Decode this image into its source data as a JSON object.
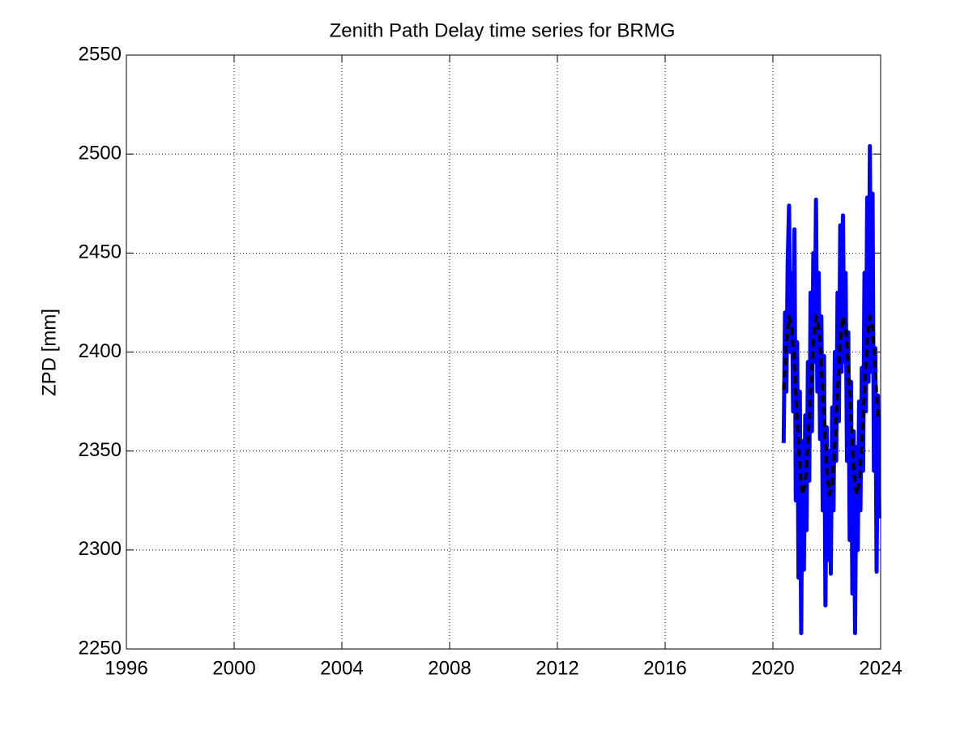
{
  "chart_data": {
    "type": "line",
    "title": "Zenith Path Delay time series for BRMG",
    "y_label": "ZPD [mm]",
    "xlim": [
      1996,
      2024
    ],
    "xticks": [
      1996,
      2000,
      2004,
      2008,
      2012,
      2016,
      2020,
      2024
    ],
    "ylim": [
      2250,
      2550
    ],
    "yticks": [
      2250,
      2300,
      2350,
      2400,
      2450,
      2500,
      2550
    ],
    "grid": true,
    "series": [
      {
        "color": "#0000ff",
        "dash": false,
        "width": 5,
        "x": [
          2020.4,
          2020.45,
          2020.5,
          2020.55,
          2020.6,
          2020.65,
          2020.7,
          2020.75,
          2020.8,
          2020.85,
          2020.9,
          2020.95,
          2021.0,
          2021.05,
          2021.1,
          2021.15,
          2021.2,
          2021.25,
          2021.3,
          2021.35,
          2021.4,
          2021.45,
          2021.5,
          2021.55,
          2021.6,
          2021.65,
          2021.7,
          2021.75,
          2021.8,
          2021.85,
          2021.9,
          2021.95,
          2022.0,
          2022.05,
          2022.1,
          2022.15,
          2022.2,
          2022.25,
          2022.3,
          2022.35,
          2022.4,
          2022.45,
          2022.5,
          2022.55,
          2022.6,
          2022.65,
          2022.7,
          2022.75,
          2022.8,
          2022.85,
          2022.9,
          2022.95,
          2023.0,
          2023.05,
          2023.1,
          2023.15,
          2023.2,
          2023.25,
          2023.3,
          2023.35,
          2023.4,
          2023.45,
          2023.5,
          2023.55,
          2023.6,
          2023.65,
          2023.7,
          2023.75,
          2023.8,
          2023.85,
          2023.9,
          2023.95
        ],
        "values": [
          2354,
          2420,
          2380,
          2446,
          2474,
          2400,
          2440,
          2370,
          2462,
          2325,
          2405,
          2286,
          2380,
          2258,
          2355,
          2290,
          2368,
          2310,
          2395,
          2335,
          2430,
          2360,
          2450,
          2395,
          2477,
          2380,
          2440,
          2356,
          2418,
          2320,
          2398,
          2272,
          2362,
          2295,
          2350,
          2288,
          2372,
          2320,
          2400,
          2345,
          2430,
          2365,
          2464,
          2390,
          2469,
          2395,
          2440,
          2345,
          2410,
          2305,
          2385,
          2278,
          2360,
          2258,
          2352,
          2300,
          2375,
          2320,
          2392,
          2340,
          2440,
          2370,
          2478,
          2385,
          2504,
          2390,
          2480,
          2340,
          2402,
          2289,
          2378,
          2316
        ]
      },
      {
        "color": "#000000",
        "dash": true,
        "width": 4,
        "x": [
          2020.4,
          2020.5,
          2020.6,
          2020.7,
          2020.8,
          2020.9,
          2021.0,
          2021.1,
          2021.2,
          2021.3,
          2021.4,
          2021.5,
          2021.6,
          2021.7,
          2021.8,
          2021.9,
          2022.0,
          2022.1,
          2022.2,
          2022.3,
          2022.4,
          2022.5,
          2022.6,
          2022.7,
          2022.8,
          2022.9,
          2023.0,
          2023.1,
          2023.2,
          2023.3,
          2023.4,
          2023.5,
          2023.6,
          2023.7,
          2023.8,
          2023.9
        ],
        "values": [
          2381,
          2406,
          2418,
          2412,
          2392,
          2365,
          2340,
          2328,
          2334,
          2354,
          2381,
          2406,
          2418,
          2412,
          2392,
          2365,
          2340,
          2328,
          2334,
          2354,
          2381,
          2406,
          2418,
          2412,
          2392,
          2365,
          2340,
          2328,
          2334,
          2354,
          2381,
          2406,
          2418,
          2412,
          2392,
          2365
        ]
      }
    ]
  }
}
